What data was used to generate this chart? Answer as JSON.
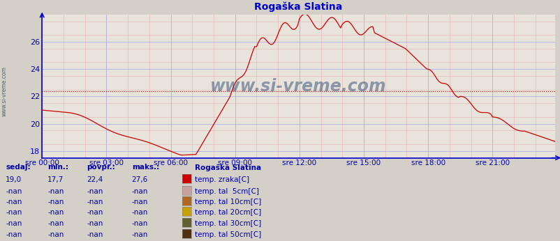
{
  "title": "Rogaška Slatina",
  "title_color": "#0000cc",
  "bg_color": "#d4d0c8",
  "plot_bg_color": "#e8e4dc",
  "grid_color_major": "#b0b0e0",
  "grid_color_minor": "#e8b0b0",
  "line_color": "#cc0000",
  "avg_line_color": "#cc0000",
  "avg_line_value": 22.4,
  "x_label_color": "#0000aa",
  "y_label_color": "#0000aa",
  "axis_color": "#0000cc",
  "ylim": [
    17.5,
    28.0
  ],
  "yticks": [
    18,
    20,
    22,
    24,
    26
  ],
  "x_tick_labels": [
    "sre 00:00",
    "sre 03:00",
    "sre 06:00",
    "sre 09:00",
    "sre 12:00",
    "sre 15:00",
    "sre 18:00",
    "sre 21:00"
  ],
  "x_tick_positions": [
    0,
    36,
    72,
    108,
    144,
    180,
    216,
    252
  ],
  "total_points": 288,
  "watermark": "www.si-vreme.com",
  "watermark_color": "#1a3a6a",
  "legend_station": "Rogaška Slatina",
  "legend_items": [
    {
      "label": "temp. zraka[C]",
      "color": "#cc0000"
    },
    {
      "label": "temp. tal  5cm[C]",
      "color": "#c8a0a0"
    },
    {
      "label": "temp. tal 10cm[C]",
      "color": "#b06820"
    },
    {
      "label": "temp. tal 20cm[C]",
      "color": "#c8a000"
    },
    {
      "label": "temp. tal 30cm[C]",
      "color": "#606030"
    },
    {
      "label": "temp. tal 50cm[C]",
      "color": "#503010"
    }
  ],
  "table_headers": [
    "sedaj:",
    "min.:",
    "povpr.:",
    "maks.:"
  ],
  "table_values": [
    "19,0",
    "17,7",
    "22,4",
    "27,6"
  ],
  "table_nan_rows": [
    [
      "-nan",
      "-nan",
      "-nan",
      "-nan"
    ],
    [
      "-nan",
      "-nan",
      "-nan",
      "-nan"
    ],
    [
      "-nan",
      "-nan",
      "-nan",
      "-nan"
    ],
    [
      "-nan",
      "-nan",
      "-nan",
      "-nan"
    ],
    [
      "-nan",
      "-nan",
      "-nan",
      "-nan"
    ]
  ]
}
